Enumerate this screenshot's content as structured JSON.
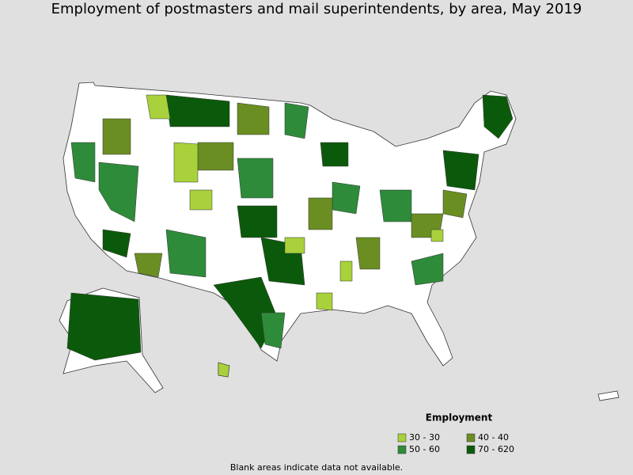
{
  "title": "Employment of postmasters and mail superintendents, by area, May 2019",
  "legend": {
    "title": "Employment",
    "items": [
      {
        "label": "30 - 30",
        "color": "#a8d13b"
      },
      {
        "label": "40 - 40",
        "color": "#6b8e23"
      },
      {
        "label": "50 - 60",
        "color": "#2e8b3a"
      },
      {
        "label": "70 - 620",
        "color": "#0b5a0b"
      }
    ]
  },
  "note": "Blank areas indicate data not available."
}
